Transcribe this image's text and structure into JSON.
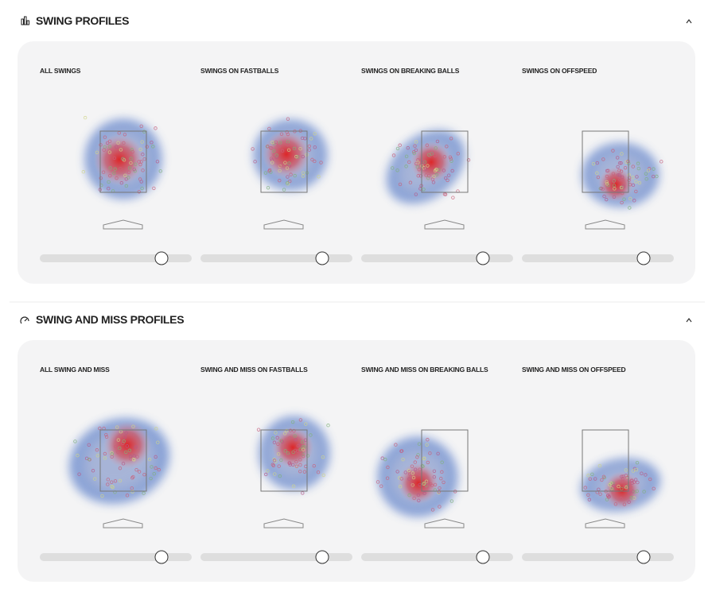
{
  "sections": [
    {
      "title": "SWING PROFILES",
      "panels": [
        "ALL SWINGS",
        "SWINGS ON FASTBALLS",
        "SWINGS ON BREAKING BALLS",
        "SWINGS ON OFFSPEED"
      ]
    },
    {
      "title": "SWING AND MISS PROFILES",
      "panels": [
        "ALL SWING AND MISS",
        "SWING AND MISS ON FASTBALLS",
        "SWING AND MISS ON BREAKING BALLS",
        "SWING AND MISS ON OFFSPEED"
      ]
    }
  ]
}
